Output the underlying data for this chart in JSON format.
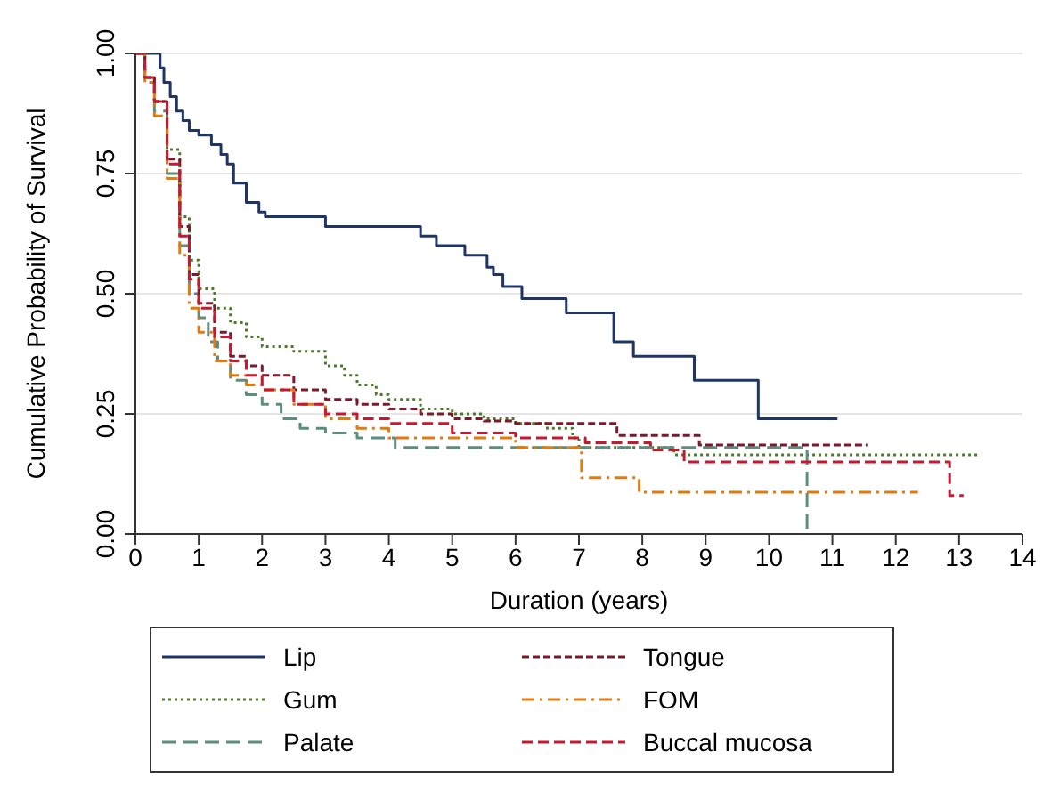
{
  "chart_data": {
    "type": "step",
    "xlabel": "Duration (years)",
    "ylabel": "Cumulative  Probability of Survival",
    "xlim": [
      0,
      14
    ],
    "xticks": [
      0,
      1,
      2,
      3,
      4,
      5,
      6,
      7,
      8,
      9,
      10,
      11,
      12,
      13,
      14
    ],
    "ylim": [
      0,
      1
    ],
    "yticks": [
      {
        "value": 0,
        "label": "0.00"
      },
      {
        "value": 0.25,
        "label": "0.25"
      },
      {
        "value": 0.5,
        "label": "0.50"
      },
      {
        "value": 0.75,
        "label": "0.75"
      },
      {
        "value": 1,
        "label": "1.00"
      }
    ],
    "grid": "y",
    "legend": "bottom",
    "series": [
      {
        "name": "Lip",
        "color": "#1f3566",
        "line_style": "solid",
        "x": [
          0,
          0.39,
          0.45,
          0.55,
          0.65,
          0.75,
          0.85,
          1.0,
          1.2,
          1.35,
          1.45,
          1.55,
          1.75,
          1.95,
          2.05,
          3.0,
          4.5,
          4.75,
          5.2,
          5.55,
          5.65,
          5.8,
          6.1,
          6.8,
          7.55,
          7.86,
          8.82,
          9.83,
          11.08
        ],
        "values": [
          1,
          0.97,
          0.94,
          0.91,
          0.88,
          0.86,
          0.84,
          0.83,
          0.81,
          0.79,
          0.77,
          0.73,
          0.69,
          0.67,
          0.66,
          0.64,
          0.62,
          0.6,
          0.58,
          0.555,
          0.54,
          0.515,
          0.49,
          0.46,
          0.4,
          0.37,
          0.32,
          0.24,
          0.24
        ]
      },
      {
        "name": "Gum",
        "color": "#4e7a2c",
        "line_style": "dotted",
        "x": [
          0,
          0.15,
          0.3,
          0.5,
          0.7,
          0.85,
          1.0,
          1.25,
          1.5,
          1.75,
          2.0,
          2.5,
          3.0,
          3.3,
          3.5,
          3.8,
          4.0,
          4.5,
          5.0,
          5.5,
          6.0,
          6.5,
          6.9,
          7.0,
          8.5,
          13.3
        ],
        "values": [
          1,
          0.95,
          0.9,
          0.8,
          0.66,
          0.57,
          0.51,
          0.47,
          0.44,
          0.41,
          0.39,
          0.38,
          0.35,
          0.33,
          0.31,
          0.29,
          0.28,
          0.26,
          0.25,
          0.24,
          0.23,
          0.22,
          0.2,
          0.18,
          0.165,
          0.165
        ]
      },
      {
        "name": "Palate",
        "color": "#5e8c7e",
        "line_style": "dashed",
        "x": [
          0,
          0.15,
          0.3,
          0.5,
          0.7,
          0.85,
          1.0,
          1.15,
          1.3,
          1.5,
          1.75,
          2.0,
          2.3,
          2.6,
          3.0,
          3.5,
          4.1,
          10.6,
          10.6
        ],
        "values": [
          1,
          0.94,
          0.88,
          0.75,
          0.6,
          0.5,
          0.45,
          0.4,
          0.36,
          0.32,
          0.29,
          0.27,
          0.24,
          0.22,
          0.21,
          0.2,
          0.18,
          0.18,
          0.01
        ]
      },
      {
        "name": "Tongue",
        "color": "#7a1a2c",
        "line_style": "dashed",
        "x": [
          0,
          0.15,
          0.3,
          0.5,
          0.7,
          0.85,
          1.0,
          1.25,
          1.5,
          1.75,
          2.0,
          2.5,
          3.0,
          3.5,
          4.0,
          4.5,
          5.0,
          5.5,
          6.0,
          7.6,
          8.9,
          11.55
        ],
        "values": [
          1,
          0.95,
          0.9,
          0.78,
          0.64,
          0.54,
          0.48,
          0.42,
          0.37,
          0.35,
          0.33,
          0.3,
          0.28,
          0.27,
          0.26,
          0.25,
          0.24,
          0.235,
          0.23,
          0.205,
          0.185,
          0.185
        ]
      },
      {
        "name": "FOM",
        "color": "#e07b12",
        "line_style": "dashed",
        "x": [
          0,
          0.15,
          0.3,
          0.5,
          0.7,
          0.85,
          1.0,
          1.25,
          1.5,
          1.75,
          2.0,
          2.5,
          3.0,
          3.5,
          4.0,
          5.5,
          6.0,
          7.04,
          7.95,
          12.35
        ],
        "values": [
          1,
          0.94,
          0.87,
          0.74,
          0.58,
          0.47,
          0.42,
          0.36,
          0.33,
          0.31,
          0.3,
          0.27,
          0.24,
          0.22,
          0.2,
          0.2,
          0.18,
          0.117,
          0.087,
          0.087
        ]
      },
      {
        "name": "Buccal mucosa",
        "color": "#c41a30",
        "line_style": "dashed",
        "x": [
          0,
          0.15,
          0.3,
          0.5,
          0.7,
          0.85,
          1.0,
          1.25,
          1.5,
          1.75,
          2.0,
          2.5,
          3.0,
          3.5,
          4.0,
          5.0,
          6.0,
          7.1,
          8.13,
          8.66,
          12.85,
          13.07
        ],
        "values": [
          1,
          0.95,
          0.9,
          0.77,
          0.62,
          0.53,
          0.47,
          0.41,
          0.36,
          0.33,
          0.3,
          0.27,
          0.25,
          0.24,
          0.23,
          0.21,
          0.2,
          0.19,
          0.175,
          0.15,
          0.08,
          0.08
        ]
      }
    ]
  }
}
